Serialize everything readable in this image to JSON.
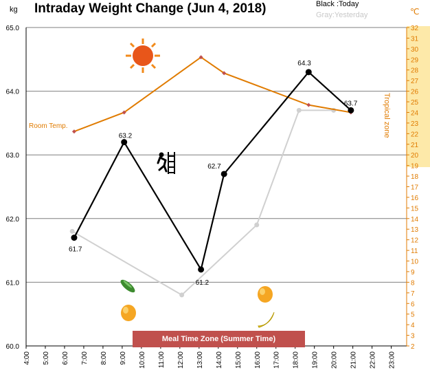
{
  "header": {
    "title": "Intraday Weight Change (Jun 4, 2018)",
    "unit_left": "kg",
    "unit_right": "℃",
    "legend_today": "Black :Today",
    "legend_yesterday": "Gray:Yesterday",
    "meal_zone": "Meal Time Zone (Summer Time)",
    "tropical_zone": "Tropical zone",
    "room_temp": "Room Temp."
  },
  "icons": {
    "sun": "sun-icon",
    "climber": "climbing-person-icon",
    "cucumber": "cucumber-icon",
    "mango_left": "mango-icon",
    "mango_right": "mango-icon",
    "banana": "banana-icon"
  },
  "colors": {
    "today": "#000000",
    "yesterday": "#d0d0d0",
    "room_temp": "#e07b00",
    "room_temp_marker": "#c0504d",
    "meal_band": "#c0504d",
    "tropical_band": "#fde9a9"
  },
  "chart_data": {
    "type": "line",
    "title": "Intraday Weight Change (Jun 4, 2018)",
    "x_ticks": [
      "4:00",
      "5:00",
      "6:00",
      "7:00",
      "8:00",
      "9:00",
      "10:00",
      "11:00",
      "12:00",
      "13:00",
      "14:00",
      "15:00",
      "16:00",
      "17:00",
      "18:00",
      "19:00",
      "20:00",
      "21:00",
      "22:00",
      "23:00"
    ],
    "y_left": {
      "label": "kg",
      "ylim": [
        60.0,
        65.0
      ],
      "ticks": [
        "60.0",
        "61.0",
        "62.0",
        "63.0",
        "64.0",
        "65.0"
      ]
    },
    "y_right": {
      "label": "℃",
      "ylim": [
        2,
        32
      ],
      "ticks": [
        "2",
        "3",
        "4",
        "5",
        "6",
        "7",
        "8",
        "9",
        "10",
        "11",
        "12",
        "13",
        "14",
        "15",
        "16",
        "17",
        "18",
        "19",
        "20",
        "21",
        "22",
        "23",
        "24",
        "25",
        "26",
        "27",
        "28",
        "29",
        "30",
        "31",
        "32"
      ]
    },
    "meal_zone": {
      "start": 9.5,
      "end": 18.4
    },
    "tropical_zone": {
      "from": 19,
      "to": 32
    },
    "grid": true,
    "series": [
      {
        "name": "Today",
        "axis": "left",
        "x": [
          6.5,
          9.1,
          13.1,
          14.3,
          18.7,
          20.9
        ],
        "y": [
          61.7,
          63.2,
          61.2,
          62.7,
          64.3,
          63.7
        ],
        "labels": [
          "61.7",
          "63.2",
          "61.2",
          "62.7",
          "64.3",
          "63.7"
        ]
      },
      {
        "name": "Yesterday",
        "axis": "left",
        "x": [
          6.4,
          12.1,
          16.0,
          18.2,
          20.0
        ],
        "y": [
          61.8,
          60.8,
          61.9,
          63.7,
          63.7
        ]
      },
      {
        "name": "Room Temp.",
        "axis": "right",
        "x": [
          6.5,
          9.1,
          13.1,
          14.3,
          18.7,
          20.9
        ],
        "y": [
          22.2,
          24.0,
          29.2,
          27.7,
          24.7,
          24.0
        ]
      }
    ]
  }
}
